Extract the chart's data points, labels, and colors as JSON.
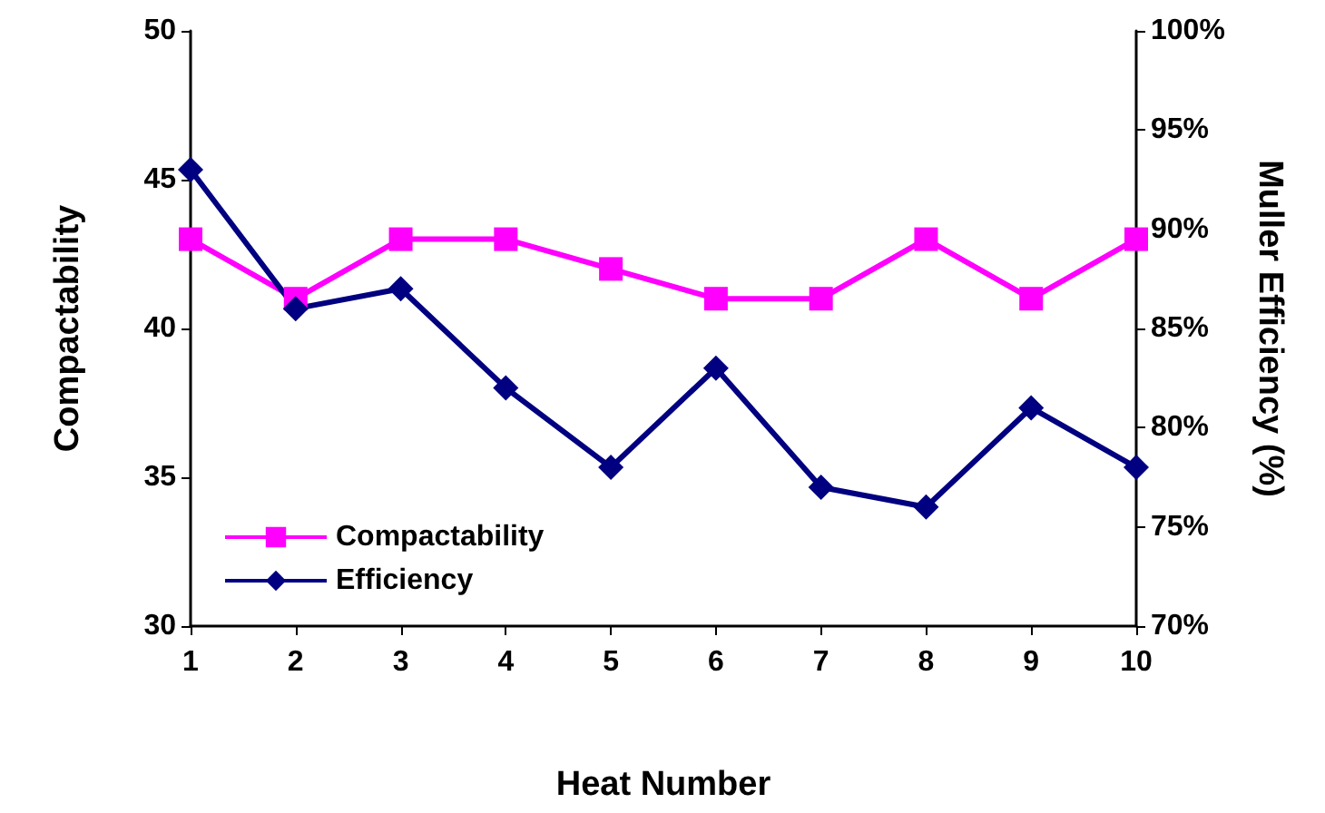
{
  "chart_data": {
    "type": "line",
    "xlabel": "Heat Number",
    "ylabel": "Compactability",
    "y2label": "Muller Efficiency (%)",
    "categories": [
      "1",
      "2",
      "3",
      "4",
      "5",
      "6",
      "7",
      "8",
      "9",
      "10"
    ],
    "series": [
      {
        "name": "Compactability",
        "color": "#ff00ff",
        "marker": "square",
        "values": [
          43,
          41,
          43,
          43,
          42,
          41,
          41,
          43,
          41,
          43
        ]
      },
      {
        "name": "Efficiency",
        "color": "#000080",
        "marker": "diamond",
        "axis": "y2",
        "values": [
          93,
          86,
          87,
          82,
          78,
          83,
          77,
          76,
          81,
          78
        ]
      }
    ],
    "ylim": [
      30,
      50
    ],
    "yticks": [
      30,
      35,
      40,
      45,
      50
    ],
    "y2lim": [
      70,
      100
    ],
    "y2ticks": [
      {
        "value": 70,
        "label": "70%"
      },
      {
        "value": 75,
        "label": "75%"
      },
      {
        "value": 80,
        "label": "80%"
      },
      {
        "value": 85,
        "label": "85%"
      },
      {
        "value": 90,
        "label": "90%"
      },
      {
        "value": 95,
        "label": "95%"
      },
      {
        "value": 100,
        "label": "100%"
      }
    ],
    "legend": "bottom left",
    "grid": false,
    "line_style": "solid"
  }
}
